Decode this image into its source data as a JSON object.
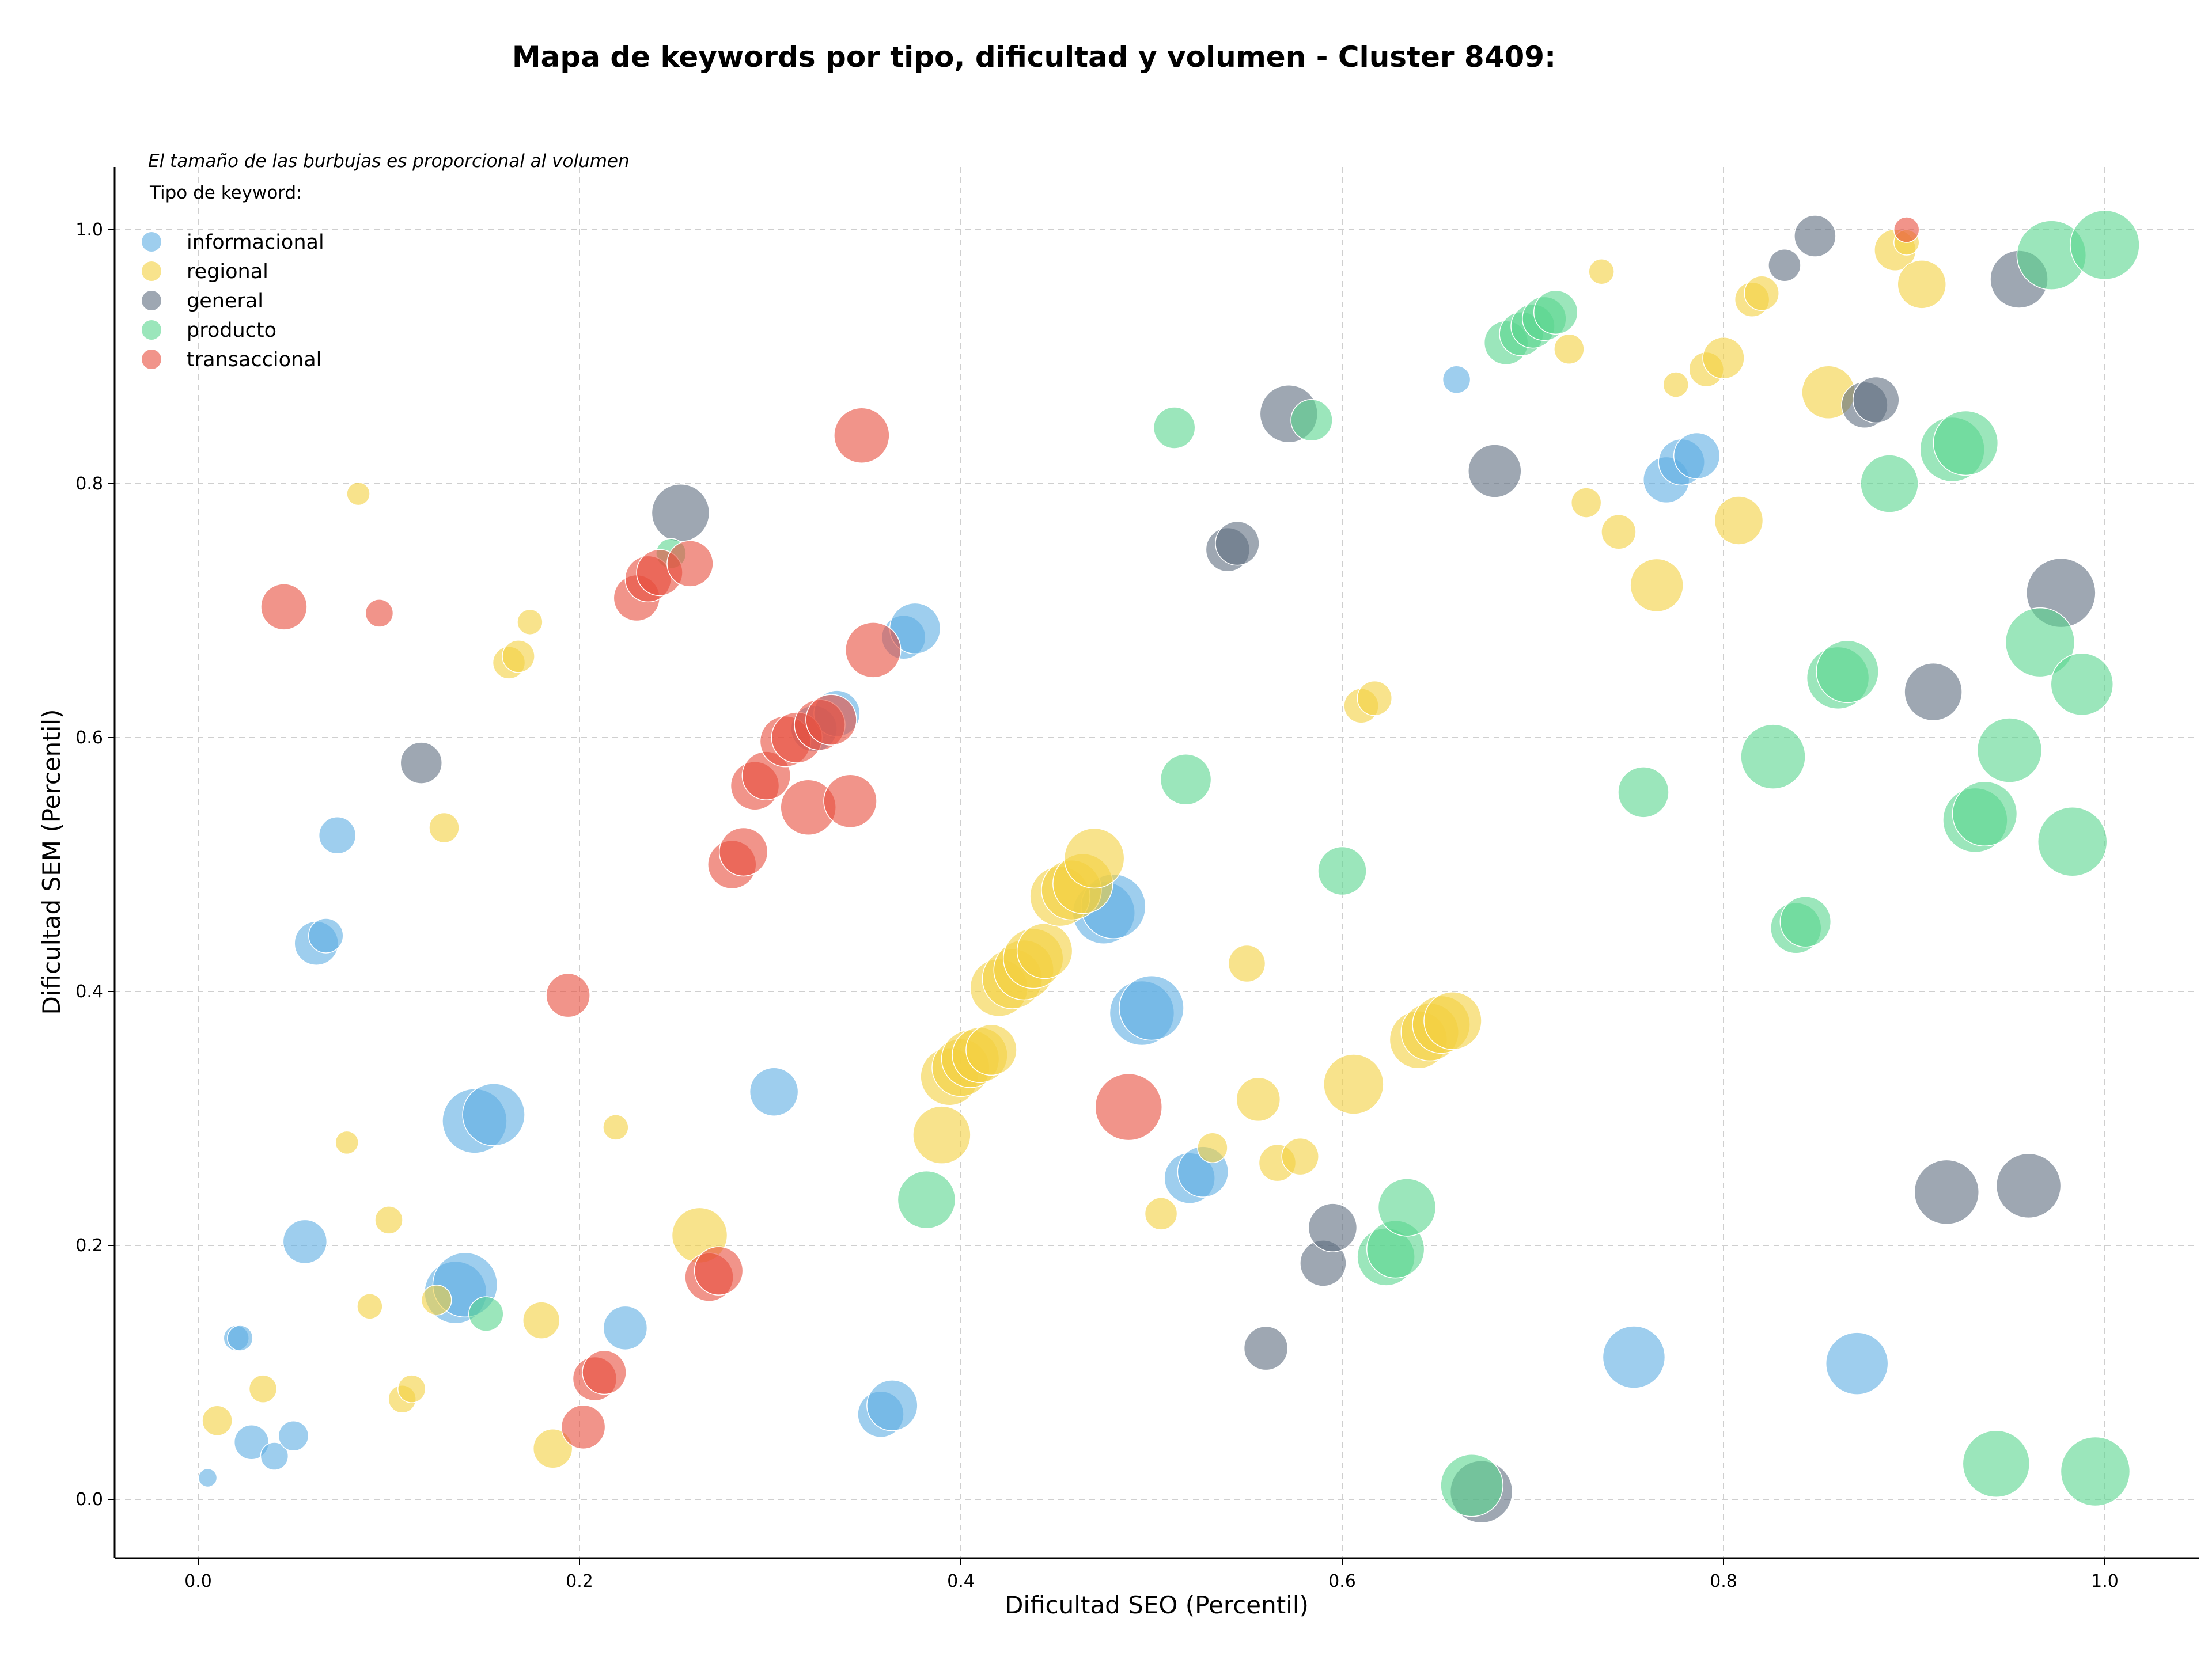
{
  "chart_data": {
    "type": "scatter",
    "title": "Mapa de keywords por tipo, dificultad y volumen - Cluster 8409:",
    "xlabel": "Dificultad SEO (Percentil)",
    "ylabel": "Dificultad SEM (Percentil)",
    "xlim": [
      -0.045,
      1.05
    ],
    "ylim": [
      -0.045,
      1.05
    ],
    "xticks": [
      0.0,
      0.2,
      0.4,
      0.6,
      0.8,
      1.0
    ],
    "yticks": [
      0.0,
      0.2,
      0.4,
      0.6,
      0.8,
      1.0
    ],
    "xtick_labels": [
      "0.0",
      "0.2",
      "0.4",
      "0.6",
      "0.8",
      "1.0"
    ],
    "ytick_labels": [
      "0.0",
      "0.2",
      "0.4",
      "0.6",
      "0.8",
      "1.0"
    ],
    "grid": true,
    "legend_position": "top-left",
    "size_note": "El tamaño de las burbujas es proporcional al volumen",
    "legend_title": "Tipo de keyword:",
    "series": [
      {
        "name": "informacional",
        "color": "#5dade2",
        "points": [
          [
            0.005,
            0.017,
            16
          ],
          [
            0.02,
            0.127,
            22
          ],
          [
            0.022,
            0.127,
            22
          ],
          [
            0.028,
            0.045,
            30
          ],
          [
            0.04,
            0.034,
            24
          ],
          [
            0.05,
            0.05,
            26
          ],
          [
            0.056,
            0.203,
            38
          ],
          [
            0.062,
            0.438,
            38
          ],
          [
            0.067,
            0.444,
            30
          ],
          [
            0.073,
            0.523,
            32
          ],
          [
            0.135,
            0.163,
            54
          ],
          [
            0.14,
            0.169,
            56
          ],
          [
            0.145,
            0.298,
            56
          ],
          [
            0.155,
            0.303,
            54
          ],
          [
            0.224,
            0.135,
            38
          ],
          [
            0.302,
            0.321,
            42
          ],
          [
            0.323,
            0.607,
            40
          ],
          [
            0.335,
            0.619,
            40
          ],
          [
            0.358,
            0.067,
            40
          ],
          [
            0.364,
            0.074,
            44
          ],
          [
            0.37,
            0.679,
            38
          ],
          [
            0.376,
            0.686,
            44
          ],
          [
            0.475,
            0.462,
            54
          ],
          [
            0.48,
            0.467,
            56
          ],
          [
            0.495,
            0.383,
            56
          ],
          [
            0.5,
            0.387,
            56
          ],
          [
            0.52,
            0.253,
            44
          ],
          [
            0.527,
            0.258,
            44
          ],
          [
            0.66,
            0.882,
            24
          ],
          [
            0.77,
            0.803,
            40
          ],
          [
            0.778,
            0.817,
            40
          ],
          [
            0.786,
            0.822,
            40
          ],
          [
            0.753,
            0.112,
            54
          ],
          [
            0.87,
            0.107,
            54
          ]
        ]
      },
      {
        "name": "regional",
        "color": "#f4d03f",
        "points": [
          [
            0.01,
            0.062,
            26
          ],
          [
            0.034,
            0.087,
            24
          ],
          [
            0.078,
            0.281,
            20
          ],
          [
            0.084,
            0.792,
            20
          ],
          [
            0.09,
            0.152,
            22
          ],
          [
            0.1,
            0.22,
            24
          ],
          [
            0.107,
            0.079,
            24
          ],
          [
            0.112,
            0.087,
            24
          ],
          [
            0.125,
            0.157,
            26
          ],
          [
            0.129,
            0.529,
            26
          ],
          [
            0.163,
            0.659,
            28
          ],
          [
            0.168,
            0.664,
            28
          ],
          [
            0.174,
            0.691,
            22
          ],
          [
            0.18,
            0.141,
            32
          ],
          [
            0.186,
            0.04,
            34
          ],
          [
            0.219,
            0.293,
            22
          ],
          [
            0.263,
            0.208,
            48
          ],
          [
            0.39,
            0.287,
            50
          ],
          [
            0.394,
            0.333,
            50
          ],
          [
            0.4,
            0.34,
            50
          ],
          [
            0.405,
            0.347,
            50
          ],
          [
            0.41,
            0.35,
            48
          ],
          [
            0.416,
            0.354,
            44
          ],
          [
            0.42,
            0.403,
            50
          ],
          [
            0.427,
            0.41,
            52
          ],
          [
            0.433,
            0.417,
            52
          ],
          [
            0.438,
            0.426,
            52
          ],
          [
            0.444,
            0.432,
            48
          ],
          [
            0.452,
            0.475,
            52
          ],
          [
            0.458,
            0.48,
            52
          ],
          [
            0.464,
            0.485,
            52
          ],
          [
            0.47,
            0.505,
            52
          ],
          [
            0.505,
            0.225,
            28
          ],
          [
            0.532,
            0.277,
            26
          ],
          [
            0.55,
            0.422,
            32
          ],
          [
            0.556,
            0.315,
            38
          ],
          [
            0.566,
            0.265,
            32
          ],
          [
            0.578,
            0.27,
            32
          ],
          [
            0.606,
            0.327,
            52
          ],
          [
            0.61,
            0.625,
            30
          ],
          [
            0.617,
            0.631,
            30
          ],
          [
            0.64,
            0.362,
            50
          ],
          [
            0.646,
            0.368,
            50
          ],
          [
            0.652,
            0.374,
            50
          ],
          [
            0.658,
            0.377,
            50
          ],
          [
            0.719,
            0.906,
            26
          ],
          [
            0.728,
            0.785,
            26
          ],
          [
            0.736,
            0.967,
            22
          ],
          [
            0.745,
            0.762,
            30
          ],
          [
            0.765,
            0.72,
            46
          ],
          [
            0.775,
            0.878,
            22
          ],
          [
            0.791,
            0.89,
            30
          ],
          [
            0.8,
            0.899,
            36
          ],
          [
            0.808,
            0.771,
            42
          ],
          [
            0.815,
            0.945,
            30
          ],
          [
            0.82,
            0.95,
            30
          ],
          [
            0.855,
            0.872,
            46
          ],
          [
            0.89,
            0.984,
            36
          ],
          [
            0.896,
            0.99,
            22
          ],
          [
            0.904,
            0.957,
            42
          ]
        ]
      },
      {
        "name": "general",
        "color": "#5d6d7e",
        "points": [
          [
            0.117,
            0.58,
            36
          ],
          [
            0.253,
            0.777,
            50
          ],
          [
            0.54,
            0.748,
            38
          ],
          [
            0.545,
            0.753,
            38
          ],
          [
            0.56,
            0.119,
            38
          ],
          [
            0.572,
            0.855,
            50
          ],
          [
            0.59,
            0.186,
            40
          ],
          [
            0.595,
            0.214,
            42
          ],
          [
            0.68,
            0.81,
            46
          ],
          [
            0.673,
            0.006,
            54
          ],
          [
            0.832,
            0.972,
            28
          ],
          [
            0.848,
            0.995,
            36
          ],
          [
            0.874,
            0.862,
            40
          ],
          [
            0.88,
            0.866,
            40
          ],
          [
            0.91,
            0.636,
            50
          ],
          [
            0.917,
            0.242,
            56
          ],
          [
            0.955,
            0.961,
            50
          ],
          [
            0.96,
            0.247,
            56
          ],
          [
            0.977,
            0.714,
            60
          ]
        ]
      },
      {
        "name": "producto",
        "color": "#58d68d",
        "points": [
          [
            0.151,
            0.146,
            30
          ],
          [
            0.248,
            0.745,
            26
          ],
          [
            0.382,
            0.236,
            50
          ],
          [
            0.512,
            0.844,
            36
          ],
          [
            0.518,
            0.567,
            44
          ],
          [
            0.584,
            0.85,
            36
          ],
          [
            0.6,
            0.495,
            42
          ],
          [
            0.623,
            0.191,
            50
          ],
          [
            0.628,
            0.197,
            50
          ],
          [
            0.634,
            0.23,
            50
          ],
          [
            0.668,
            0.011,
            54
          ],
          [
            0.686,
            0.911,
            38
          ],
          [
            0.694,
            0.918,
            38
          ],
          [
            0.7,
            0.924,
            38
          ],
          [
            0.706,
            0.93,
            38
          ],
          [
            0.712,
            0.935,
            38
          ],
          [
            0.758,
            0.557,
            44
          ],
          [
            0.826,
            0.585,
            56
          ],
          [
            0.838,
            0.45,
            44
          ],
          [
            0.843,
            0.455,
            44
          ],
          [
            0.86,
            0.647,
            54
          ],
          [
            0.865,
            0.652,
            54
          ],
          [
            0.887,
            0.8,
            50
          ],
          [
            0.92,
            0.827,
            56
          ],
          [
            0.927,
            0.832,
            56
          ],
          [
            0.932,
            0.535,
            56
          ],
          [
            0.937,
            0.54,
            56
          ],
          [
            0.943,
            0.028,
            58
          ],
          [
            0.95,
            0.59,
            56
          ],
          [
            0.966,
            0.675,
            60
          ],
          [
            0.972,
            0.98,
            60
          ],
          [
            0.983,
            0.518,
            60
          ],
          [
            0.988,
            0.642,
            54
          ],
          [
            0.995,
            0.022,
            60
          ],
          [
            1.0,
            0.988,
            60
          ]
        ]
      },
      {
        "name": "transaccional",
        "color": "#e74c3c",
        "points": [
          [
            0.045,
            0.703,
            40
          ],
          [
            0.095,
            0.698,
            24
          ],
          [
            0.194,
            0.397,
            38
          ],
          [
            0.202,
            0.057,
            38
          ],
          [
            0.208,
            0.095,
            38
          ],
          [
            0.213,
            0.1,
            38
          ],
          [
            0.23,
            0.71,
            40
          ],
          [
            0.236,
            0.725,
            40
          ],
          [
            0.242,
            0.73,
            40
          ],
          [
            0.258,
            0.737,
            40
          ],
          [
            0.268,
            0.175,
            42
          ],
          [
            0.273,
            0.18,
            42
          ],
          [
            0.28,
            0.5,
            42
          ],
          [
            0.286,
            0.51,
            42
          ],
          [
            0.292,
            0.562,
            42
          ],
          [
            0.298,
            0.57,
            42
          ],
          [
            0.308,
            0.597,
            44
          ],
          [
            0.314,
            0.6,
            44
          ],
          [
            0.32,
            0.545,
            48
          ],
          [
            0.326,
            0.61,
            44
          ],
          [
            0.332,
            0.614,
            44
          ],
          [
            0.342,
            0.55,
            46
          ],
          [
            0.348,
            0.838,
            48
          ],
          [
            0.354,
            0.669,
            48
          ],
          [
            0.488,
            0.309,
            58
          ],
          [
            0.896,
            1.0,
            22
          ]
        ]
      }
    ]
  }
}
